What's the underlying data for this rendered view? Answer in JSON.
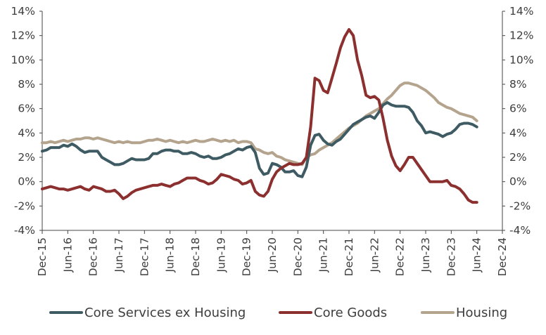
{
  "chart_data": {
    "type": "line",
    "title": "",
    "xlabel": "",
    "ylabel": "",
    "ylim": [
      -4,
      14
    ],
    "y_ticks": [
      -4,
      -2,
      0,
      2,
      4,
      6,
      8,
      10,
      12,
      14
    ],
    "y_tick_labels": [
      "-4%",
      "-2%",
      "0%",
      "2%",
      "4%",
      "6%",
      "8%",
      "10%",
      "12%",
      "14%"
    ],
    "x_tick_labels": [
      "Dec-15",
      "Jun-16",
      "Dec-16",
      "Jun-17",
      "Dec-17",
      "Jun-18",
      "Dec-18",
      "Jun-19",
      "Dec-19",
      "Jun-20",
      "Dec-20",
      "Jun-21",
      "Dec-21",
      "Jun-22",
      "Dec-22",
      "Jun-23",
      "Dec-23",
      "Jun-24",
      "Dec-24"
    ],
    "x_tick_months": [
      0,
      6,
      12,
      18,
      24,
      30,
      36,
      42,
      48,
      54,
      60,
      66,
      72,
      78,
      84,
      90,
      96,
      102,
      108
    ],
    "x_range_months": [
      0,
      108
    ],
    "x_note": "x values are months since Dec-15",
    "grid": false,
    "legend_position": "bottom",
    "series": [
      {
        "name": "Core Services ex Housing",
        "color": "#3e5b63",
        "x": [
          0,
          1,
          2,
          3,
          4,
          5,
          6,
          7,
          8,
          9,
          10,
          11,
          12,
          13,
          14,
          15,
          16,
          17,
          18,
          19,
          20,
          21,
          22,
          23,
          24,
          25,
          26,
          27,
          28,
          29,
          30,
          31,
          32,
          33,
          34,
          35,
          36,
          37,
          38,
          39,
          40,
          41,
          42,
          43,
          44,
          45,
          46,
          47,
          48,
          49,
          50,
          51,
          52,
          53,
          54,
          55,
          56,
          57,
          58,
          59,
          60,
          61,
          62,
          63,
          64,
          65,
          66,
          67,
          68,
          69,
          70,
          71,
          72,
          73,
          74,
          75,
          76,
          77,
          78,
          79,
          80,
          81,
          82,
          83,
          84,
          85,
          86,
          87,
          88,
          89,
          90,
          91,
          92,
          93,
          94,
          95,
          96,
          97,
          98,
          99,
          100,
          101,
          102
        ],
        "values": [
          2.5,
          2.6,
          2.8,
          2.8,
          2.8,
          3.0,
          2.9,
          3.1,
          2.9,
          2.6,
          2.4,
          2.5,
          2.5,
          2.5,
          2.0,
          1.8,
          1.6,
          1.4,
          1.4,
          1.5,
          1.7,
          1.9,
          1.8,
          1.8,
          1.8,
          1.9,
          2.3,
          2.3,
          2.5,
          2.6,
          2.6,
          2.5,
          2.5,
          2.3,
          2.3,
          2.4,
          2.3,
          2.1,
          2.0,
          2.1,
          1.9,
          1.9,
          2.0,
          2.2,
          2.3,
          2.5,
          2.7,
          2.6,
          2.8,
          2.9,
          2.4,
          1.1,
          0.6,
          0.7,
          1.5,
          1.4,
          1.2,
          0.8,
          0.8,
          0.9,
          0.5,
          0.4,
          1.2,
          3.0,
          3.8,
          3.9,
          3.4,
          3.1,
          3.0,
          3.3,
          3.5,
          3.9,
          4.3,
          4.7,
          4.9,
          5.1,
          5.3,
          5.4,
          5.2,
          5.7,
          6.3,
          6.5,
          6.3,
          6.2,
          6.2,
          6.2,
          6.1,
          5.7,
          5.0,
          4.6,
          4.0,
          4.1,
          4.0,
          3.9,
          3.7,
          3.9,
          4.0,
          4.3,
          4.7,
          4.8,
          4.8,
          4.7,
          4.5
        ]
      },
      {
        "name": "Core Goods",
        "color": "#8c2f2f",
        "x": [
          0,
          1,
          2,
          3,
          4,
          5,
          6,
          7,
          8,
          9,
          10,
          11,
          12,
          13,
          14,
          15,
          16,
          17,
          18,
          19,
          20,
          21,
          22,
          23,
          24,
          25,
          26,
          27,
          28,
          29,
          30,
          31,
          32,
          33,
          34,
          35,
          36,
          37,
          38,
          39,
          40,
          41,
          42,
          43,
          44,
          45,
          46,
          47,
          48,
          49,
          50,
          51,
          52,
          53,
          54,
          55,
          56,
          57,
          58,
          59,
          60,
          61,
          62,
          63,
          64,
          65,
          66,
          67,
          68,
          69,
          70,
          71,
          72,
          73,
          74,
          75,
          76,
          77,
          78,
          79,
          80,
          81,
          82,
          83,
          84,
          85,
          86,
          87,
          88,
          89,
          90,
          91,
          92,
          93,
          94,
          95,
          96,
          97,
          98,
          99,
          100,
          101,
          102
        ],
        "values": [
          -0.6,
          -0.5,
          -0.4,
          -0.5,
          -0.6,
          -0.6,
          -0.7,
          -0.6,
          -0.5,
          -0.4,
          -0.6,
          -0.7,
          -0.4,
          -0.5,
          -0.6,
          -0.8,
          -0.8,
          -0.7,
          -1.0,
          -1.4,
          -1.2,
          -0.9,
          -0.7,
          -0.6,
          -0.5,
          -0.4,
          -0.3,
          -0.3,
          -0.2,
          -0.3,
          -0.4,
          -0.2,
          -0.1,
          0.1,
          0.3,
          0.3,
          0.3,
          0.1,
          0.0,
          -0.2,
          -0.1,
          0.2,
          0.6,
          0.5,
          0.4,
          0.2,
          0.1,
          -0.2,
          -0.1,
          0.1,
          -0.8,
          -1.1,
          -1.2,
          -0.8,
          0.2,
          0.8,
          1.1,
          1.3,
          1.5,
          1.4,
          1.4,
          1.5,
          2.0,
          4.5,
          8.5,
          8.3,
          7.5,
          7.3,
          8.5,
          9.7,
          11.0,
          11.9,
          12.5,
          12.0,
          10.0,
          8.7,
          7.1,
          6.9,
          7.0,
          6.7,
          5.2,
          3.4,
          2.1,
          1.3,
          0.9,
          1.4,
          2.0,
          2.0,
          1.5,
          1.0,
          0.5,
          0.0,
          0.0,
          0.0,
          0.0,
          0.1,
          -0.3,
          -0.4,
          -0.6,
          -1.0,
          -1.5,
          -1.7,
          -1.7
        ]
      },
      {
        "name": "Housing",
        "color": "#b5a48d",
        "x": [
          0,
          1,
          2,
          3,
          4,
          5,
          6,
          7,
          8,
          9,
          10,
          11,
          12,
          13,
          14,
          15,
          16,
          17,
          18,
          19,
          20,
          21,
          22,
          23,
          24,
          25,
          26,
          27,
          28,
          29,
          30,
          31,
          32,
          33,
          34,
          35,
          36,
          37,
          38,
          39,
          40,
          41,
          42,
          43,
          44,
          45,
          46,
          47,
          48,
          49,
          50,
          51,
          52,
          53,
          54,
          55,
          56,
          57,
          58,
          59,
          60,
          61,
          62,
          63,
          64,
          65,
          66,
          67,
          68,
          69,
          70,
          71,
          72,
          73,
          74,
          75,
          76,
          77,
          78,
          79,
          80,
          81,
          82,
          83,
          84,
          85,
          86,
          87,
          88,
          89,
          90,
          91,
          92,
          93,
          94,
          95,
          96,
          97,
          98,
          99,
          100,
          101,
          102
        ],
        "values": [
          3.2,
          3.2,
          3.3,
          3.2,
          3.3,
          3.4,
          3.3,
          3.4,
          3.5,
          3.5,
          3.6,
          3.6,
          3.5,
          3.6,
          3.5,
          3.4,
          3.3,
          3.2,
          3.3,
          3.2,
          3.3,
          3.2,
          3.2,
          3.2,
          3.3,
          3.4,
          3.4,
          3.5,
          3.4,
          3.3,
          3.4,
          3.3,
          3.2,
          3.3,
          3.2,
          3.3,
          3.4,
          3.3,
          3.3,
          3.4,
          3.5,
          3.4,
          3.3,
          3.4,
          3.3,
          3.4,
          3.2,
          3.3,
          3.3,
          3.2,
          2.7,
          2.6,
          2.4,
          2.3,
          2.4,
          2.1,
          2.0,
          1.8,
          1.7,
          1.6,
          1.5,
          1.4,
          2.0,
          2.2,
          2.3,
          2.6,
          2.8,
          3.0,
          3.2,
          3.5,
          3.8,
          4.1,
          4.4,
          4.6,
          4.8,
          5.1,
          5.4,
          5.6,
          5.8,
          6.0,
          6.4,
          6.8,
          7.1,
          7.5,
          7.9,
          8.1,
          8.1,
          8.0,
          7.9,
          7.7,
          7.5,
          7.2,
          6.9,
          6.5,
          6.3,
          6.1,
          6.0,
          5.8,
          5.6,
          5.5,
          5.4,
          5.3,
          5.0
        ]
      }
    ]
  }
}
